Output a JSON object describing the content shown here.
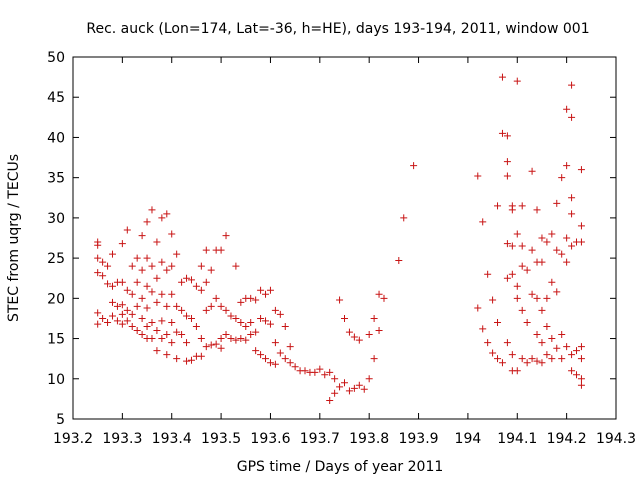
{
  "chart_data": {
    "type": "scatter",
    "title": "Rec. auck (Lon=174, Lat=-36, h=HE), days 193-194, 2011, window 001",
    "xlabel": "GPS time / Days of year 2011",
    "ylabel": "STEC from uqrg / TECUs",
    "xlim": [
      193.2,
      194.3
    ],
    "ylim": [
      5,
      50
    ],
    "x_ticks": [
      193.2,
      193.3,
      193.4,
      193.5,
      193.6,
      193.7,
      193.8,
      193.9,
      194,
      194.1,
      194.2,
      194.3
    ],
    "x_tick_labels": [
      "193.2",
      "193.3",
      "193.4",
      "193.5",
      "193.6",
      "193.7",
      "193.8",
      "193.9",
      "194",
      "194.1",
      "194.2",
      "194.3"
    ],
    "y_ticks": [
      5,
      10,
      15,
      20,
      25,
      30,
      35,
      40,
      45,
      50
    ],
    "y_tick_labels": [
      "5",
      "10",
      "15",
      "20",
      "25",
      "30",
      "35",
      "40",
      "45",
      "50"
    ],
    "grid": false,
    "legend": "none",
    "marker": "plus",
    "color": "#c81414",
    "series": [
      {
        "points": [
          [
            193.25,
            27.0
          ],
          [
            193.25,
            26.6
          ],
          [
            193.25,
            25.0
          ],
          [
            193.25,
            23.2
          ],
          [
            193.25,
            18.2
          ],
          [
            193.25,
            16.8
          ],
          [
            193.26,
            24.5
          ],
          [
            193.26,
            22.8
          ],
          [
            193.26,
            17.5
          ],
          [
            193.27,
            24.0
          ],
          [
            193.27,
            21.8
          ],
          [
            193.27,
            17.0
          ],
          [
            193.28,
            25.5
          ],
          [
            193.28,
            21.5
          ],
          [
            193.28,
            19.5
          ],
          [
            193.28,
            17.8
          ],
          [
            193.29,
            22.0
          ],
          [
            193.29,
            19.0
          ],
          [
            193.29,
            17.2
          ],
          [
            193.3,
            26.8
          ],
          [
            193.3,
            22.0
          ],
          [
            193.3,
            19.2
          ],
          [
            193.3,
            18.0
          ],
          [
            193.3,
            16.8
          ],
          [
            193.31,
            28.5
          ],
          [
            193.31,
            21.0
          ],
          [
            193.31,
            18.5
          ],
          [
            193.31,
            17.2
          ],
          [
            193.32,
            24.0
          ],
          [
            193.32,
            20.5
          ],
          [
            193.32,
            18.0
          ],
          [
            193.32,
            16.5
          ],
          [
            193.33,
            25.0
          ],
          [
            193.33,
            22.0
          ],
          [
            193.33,
            19.0
          ],
          [
            193.33,
            16.0
          ],
          [
            193.34,
            27.8
          ],
          [
            193.34,
            23.5
          ],
          [
            193.34,
            20.0
          ],
          [
            193.34,
            17.5
          ],
          [
            193.34,
            15.5
          ],
          [
            193.35,
            29.5
          ],
          [
            193.35,
            25.0
          ],
          [
            193.35,
            21.5
          ],
          [
            193.35,
            18.8
          ],
          [
            193.35,
            16.5
          ],
          [
            193.35,
            15.0
          ],
          [
            193.36,
            31.0
          ],
          [
            193.36,
            24.0
          ],
          [
            193.36,
            20.8
          ],
          [
            193.36,
            17.0
          ],
          [
            193.36,
            15.0
          ],
          [
            193.37,
            27.0
          ],
          [
            193.37,
            22.5
          ],
          [
            193.37,
            19.5
          ],
          [
            193.37,
            16.0
          ],
          [
            193.37,
            13.5
          ],
          [
            193.38,
            30.0
          ],
          [
            193.38,
            24.5
          ],
          [
            193.38,
            20.5
          ],
          [
            193.38,
            17.2
          ],
          [
            193.38,
            15.0
          ],
          [
            193.39,
            30.5
          ],
          [
            193.39,
            23.5
          ],
          [
            193.39,
            19.0
          ],
          [
            193.39,
            15.5
          ],
          [
            193.39,
            13.0
          ],
          [
            193.4,
            28.0
          ],
          [
            193.4,
            24.0
          ],
          [
            193.4,
            20.5
          ],
          [
            193.4,
            17.0
          ],
          [
            193.4,
            14.5
          ],
          [
            193.41,
            25.5
          ],
          [
            193.41,
            19.0
          ],
          [
            193.41,
            15.8
          ],
          [
            193.41,
            12.5
          ],
          [
            193.42,
            22.0
          ],
          [
            193.42,
            18.5
          ],
          [
            193.42,
            15.5
          ],
          [
            193.43,
            22.5
          ],
          [
            193.43,
            17.8
          ],
          [
            193.43,
            14.5
          ],
          [
            193.43,
            12.2
          ],
          [
            193.44,
            22.3
          ],
          [
            193.44,
            17.5
          ],
          [
            193.44,
            12.3
          ],
          [
            193.45,
            21.5
          ],
          [
            193.45,
            16.5
          ],
          [
            193.45,
            12.8
          ],
          [
            193.46,
            24.0
          ],
          [
            193.46,
            21.0
          ],
          [
            193.46,
            15.0
          ],
          [
            193.46,
            12.8
          ],
          [
            193.47,
            26.0
          ],
          [
            193.47,
            22.0
          ],
          [
            193.47,
            18.5
          ],
          [
            193.47,
            14.0
          ],
          [
            193.48,
            23.5
          ],
          [
            193.48,
            19.0
          ],
          [
            193.48,
            14.2
          ],
          [
            193.49,
            26.0
          ],
          [
            193.49,
            20.0
          ],
          [
            193.49,
            14.3
          ],
          [
            193.5,
            26.0
          ],
          [
            193.5,
            19.0
          ],
          [
            193.5,
            15.0
          ],
          [
            193.5,
            13.8
          ],
          [
            193.51,
            27.8
          ],
          [
            193.51,
            18.5
          ],
          [
            193.51,
            15.5
          ],
          [
            193.52,
            17.8
          ],
          [
            193.52,
            15.0
          ],
          [
            193.53,
            24.0
          ],
          [
            193.53,
            17.5
          ],
          [
            193.53,
            14.8
          ],
          [
            193.54,
            19.5
          ],
          [
            193.54,
            17.0
          ],
          [
            193.54,
            15.0
          ],
          [
            193.55,
            20.0
          ],
          [
            193.55,
            16.5
          ],
          [
            193.55,
            14.8
          ],
          [
            193.56,
            20.0
          ],
          [
            193.56,
            17.0
          ],
          [
            193.56,
            15.5
          ],
          [
            193.57,
            19.8
          ],
          [
            193.57,
            15.8
          ],
          [
            193.57,
            13.5
          ],
          [
            193.58,
            21.0
          ],
          [
            193.58,
            17.5
          ],
          [
            193.58,
            13.0
          ],
          [
            193.59,
            20.5
          ],
          [
            193.59,
            17.2
          ],
          [
            193.59,
            12.5
          ],
          [
            193.6,
            21.0
          ],
          [
            193.6,
            16.8
          ],
          [
            193.6,
            12.0
          ],
          [
            193.61,
            18.5
          ],
          [
            193.61,
            14.5
          ],
          [
            193.61,
            11.8
          ],
          [
            193.62,
            18.0
          ],
          [
            193.62,
            13.2
          ],
          [
            193.63,
            16.5
          ],
          [
            193.63,
            12.5
          ],
          [
            193.64,
            14.0
          ],
          [
            193.64,
            12.0
          ],
          [
            193.65,
            11.5
          ],
          [
            193.66,
            11.0
          ],
          [
            193.67,
            11.0
          ],
          [
            193.68,
            10.8
          ],
          [
            193.69,
            10.8
          ],
          [
            193.7,
            11.2
          ],
          [
            193.71,
            10.5
          ],
          [
            193.72,
            10.8
          ],
          [
            193.72,
            7.3
          ],
          [
            193.73,
            10.0
          ],
          [
            193.73,
            8.2
          ],
          [
            193.74,
            19.8
          ],
          [
            193.74,
            9.0
          ],
          [
            193.75,
            17.5
          ],
          [
            193.75,
            9.5
          ],
          [
            193.76,
            15.8
          ],
          [
            193.76,
            8.5
          ],
          [
            193.77,
            15.2
          ],
          [
            193.77,
            8.8
          ],
          [
            193.78,
            14.8
          ],
          [
            193.78,
            9.2
          ],
          [
            193.79,
            8.7
          ],
          [
            193.8,
            15.5
          ],
          [
            193.8,
            10.0
          ],
          [
            193.81,
            17.5
          ],
          [
            193.81,
            12.5
          ],
          [
            193.82,
            20.5
          ],
          [
            193.82,
            16.0
          ],
          [
            193.83,
            20.0
          ],
          [
            193.86,
            24.7
          ],
          [
            193.87,
            30.0
          ],
          [
            193.89,
            36.5
          ],
          [
            194.02,
            35.2
          ],
          [
            194.02,
            18.8
          ],
          [
            194.03,
            29.5
          ],
          [
            194.03,
            16.2
          ],
          [
            194.04,
            23.0
          ],
          [
            194.04,
            14.5
          ],
          [
            194.05,
            19.8
          ],
          [
            194.05,
            13.2
          ],
          [
            194.06,
            31.5
          ],
          [
            194.06,
            17.0
          ],
          [
            194.06,
            12.5
          ],
          [
            194.07,
            47.5
          ],
          [
            194.07,
            40.5
          ],
          [
            194.07,
            12.0
          ],
          [
            194.08,
            40.2
          ],
          [
            194.08,
            37.0
          ],
          [
            194.08,
            35.2
          ],
          [
            194.08,
            26.8
          ],
          [
            194.08,
            22.5
          ],
          [
            194.08,
            14.5
          ],
          [
            194.09,
            31.5
          ],
          [
            194.09,
            31.0
          ],
          [
            194.09,
            26.5
          ],
          [
            194.09,
            23.0
          ],
          [
            194.09,
            13.0
          ],
          [
            194.09,
            11.0
          ],
          [
            194.1,
            47.0
          ],
          [
            194.1,
            28.0
          ],
          [
            194.1,
            21.5
          ],
          [
            194.1,
            20.0
          ],
          [
            194.1,
            11.0
          ],
          [
            194.11,
            31.5
          ],
          [
            194.11,
            26.5
          ],
          [
            194.11,
            24.0
          ],
          [
            194.11,
            18.5
          ],
          [
            194.11,
            12.5
          ],
          [
            194.12,
            23.5
          ],
          [
            194.12,
            17.0
          ],
          [
            194.12,
            12.0
          ],
          [
            194.13,
            35.8
          ],
          [
            194.13,
            26.0
          ],
          [
            194.13,
            20.5
          ],
          [
            194.13,
            12.5
          ],
          [
            194.14,
            31.0
          ],
          [
            194.14,
            24.5
          ],
          [
            194.14,
            20.0
          ],
          [
            194.14,
            15.5
          ],
          [
            194.14,
            12.2
          ],
          [
            194.15,
            27.5
          ],
          [
            194.15,
            24.5
          ],
          [
            194.15,
            18.5
          ],
          [
            194.15,
            14.5
          ],
          [
            194.15,
            12.0
          ],
          [
            194.16,
            27.0
          ],
          [
            194.16,
            20.0
          ],
          [
            194.16,
            16.5
          ],
          [
            194.16,
            13.0
          ],
          [
            194.17,
            28.0
          ],
          [
            194.17,
            22.0
          ],
          [
            194.17,
            15.0
          ],
          [
            194.17,
            12.5
          ],
          [
            194.18,
            31.8
          ],
          [
            194.18,
            26.0
          ],
          [
            194.18,
            20.8
          ],
          [
            194.18,
            13.8
          ],
          [
            194.19,
            35.0
          ],
          [
            194.19,
            25.5
          ],
          [
            194.19,
            15.5
          ],
          [
            194.19,
            12.5
          ],
          [
            194.2,
            43.5
          ],
          [
            194.2,
            36.5
          ],
          [
            194.2,
            27.5
          ],
          [
            194.2,
            24.5
          ],
          [
            194.2,
            14.0
          ],
          [
            194.21,
            46.5
          ],
          [
            194.21,
            42.5
          ],
          [
            194.21,
            32.5
          ],
          [
            194.21,
            30.5
          ],
          [
            194.21,
            26.5
          ],
          [
            194.21,
            13.0
          ],
          [
            194.21,
            11.0
          ],
          [
            194.22,
            27.0
          ],
          [
            194.22,
            13.5
          ],
          [
            194.22,
            10.5
          ],
          [
            194.23,
            36.0
          ],
          [
            194.23,
            29.0
          ],
          [
            194.23,
            27.0
          ],
          [
            194.23,
            14.0
          ],
          [
            194.23,
            12.5
          ],
          [
            194.23,
            10.0
          ],
          [
            194.23,
            9.2
          ]
        ]
      }
    ]
  }
}
